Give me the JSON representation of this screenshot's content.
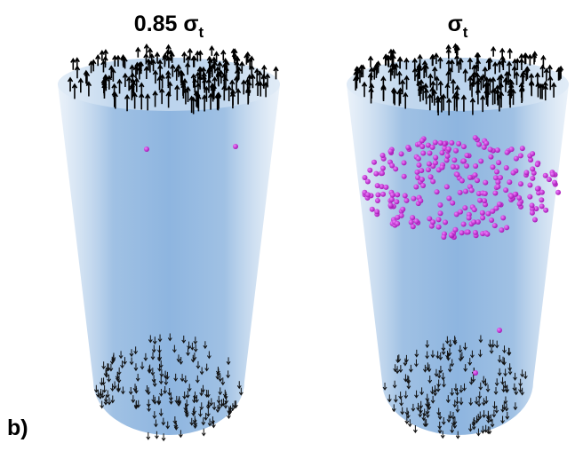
{
  "panels": [
    {
      "title": "0.85 σ",
      "subscript": "t"
    },
    {
      "title": "σ",
      "subscript": "t"
    }
  ],
  "label": "b)"
}
